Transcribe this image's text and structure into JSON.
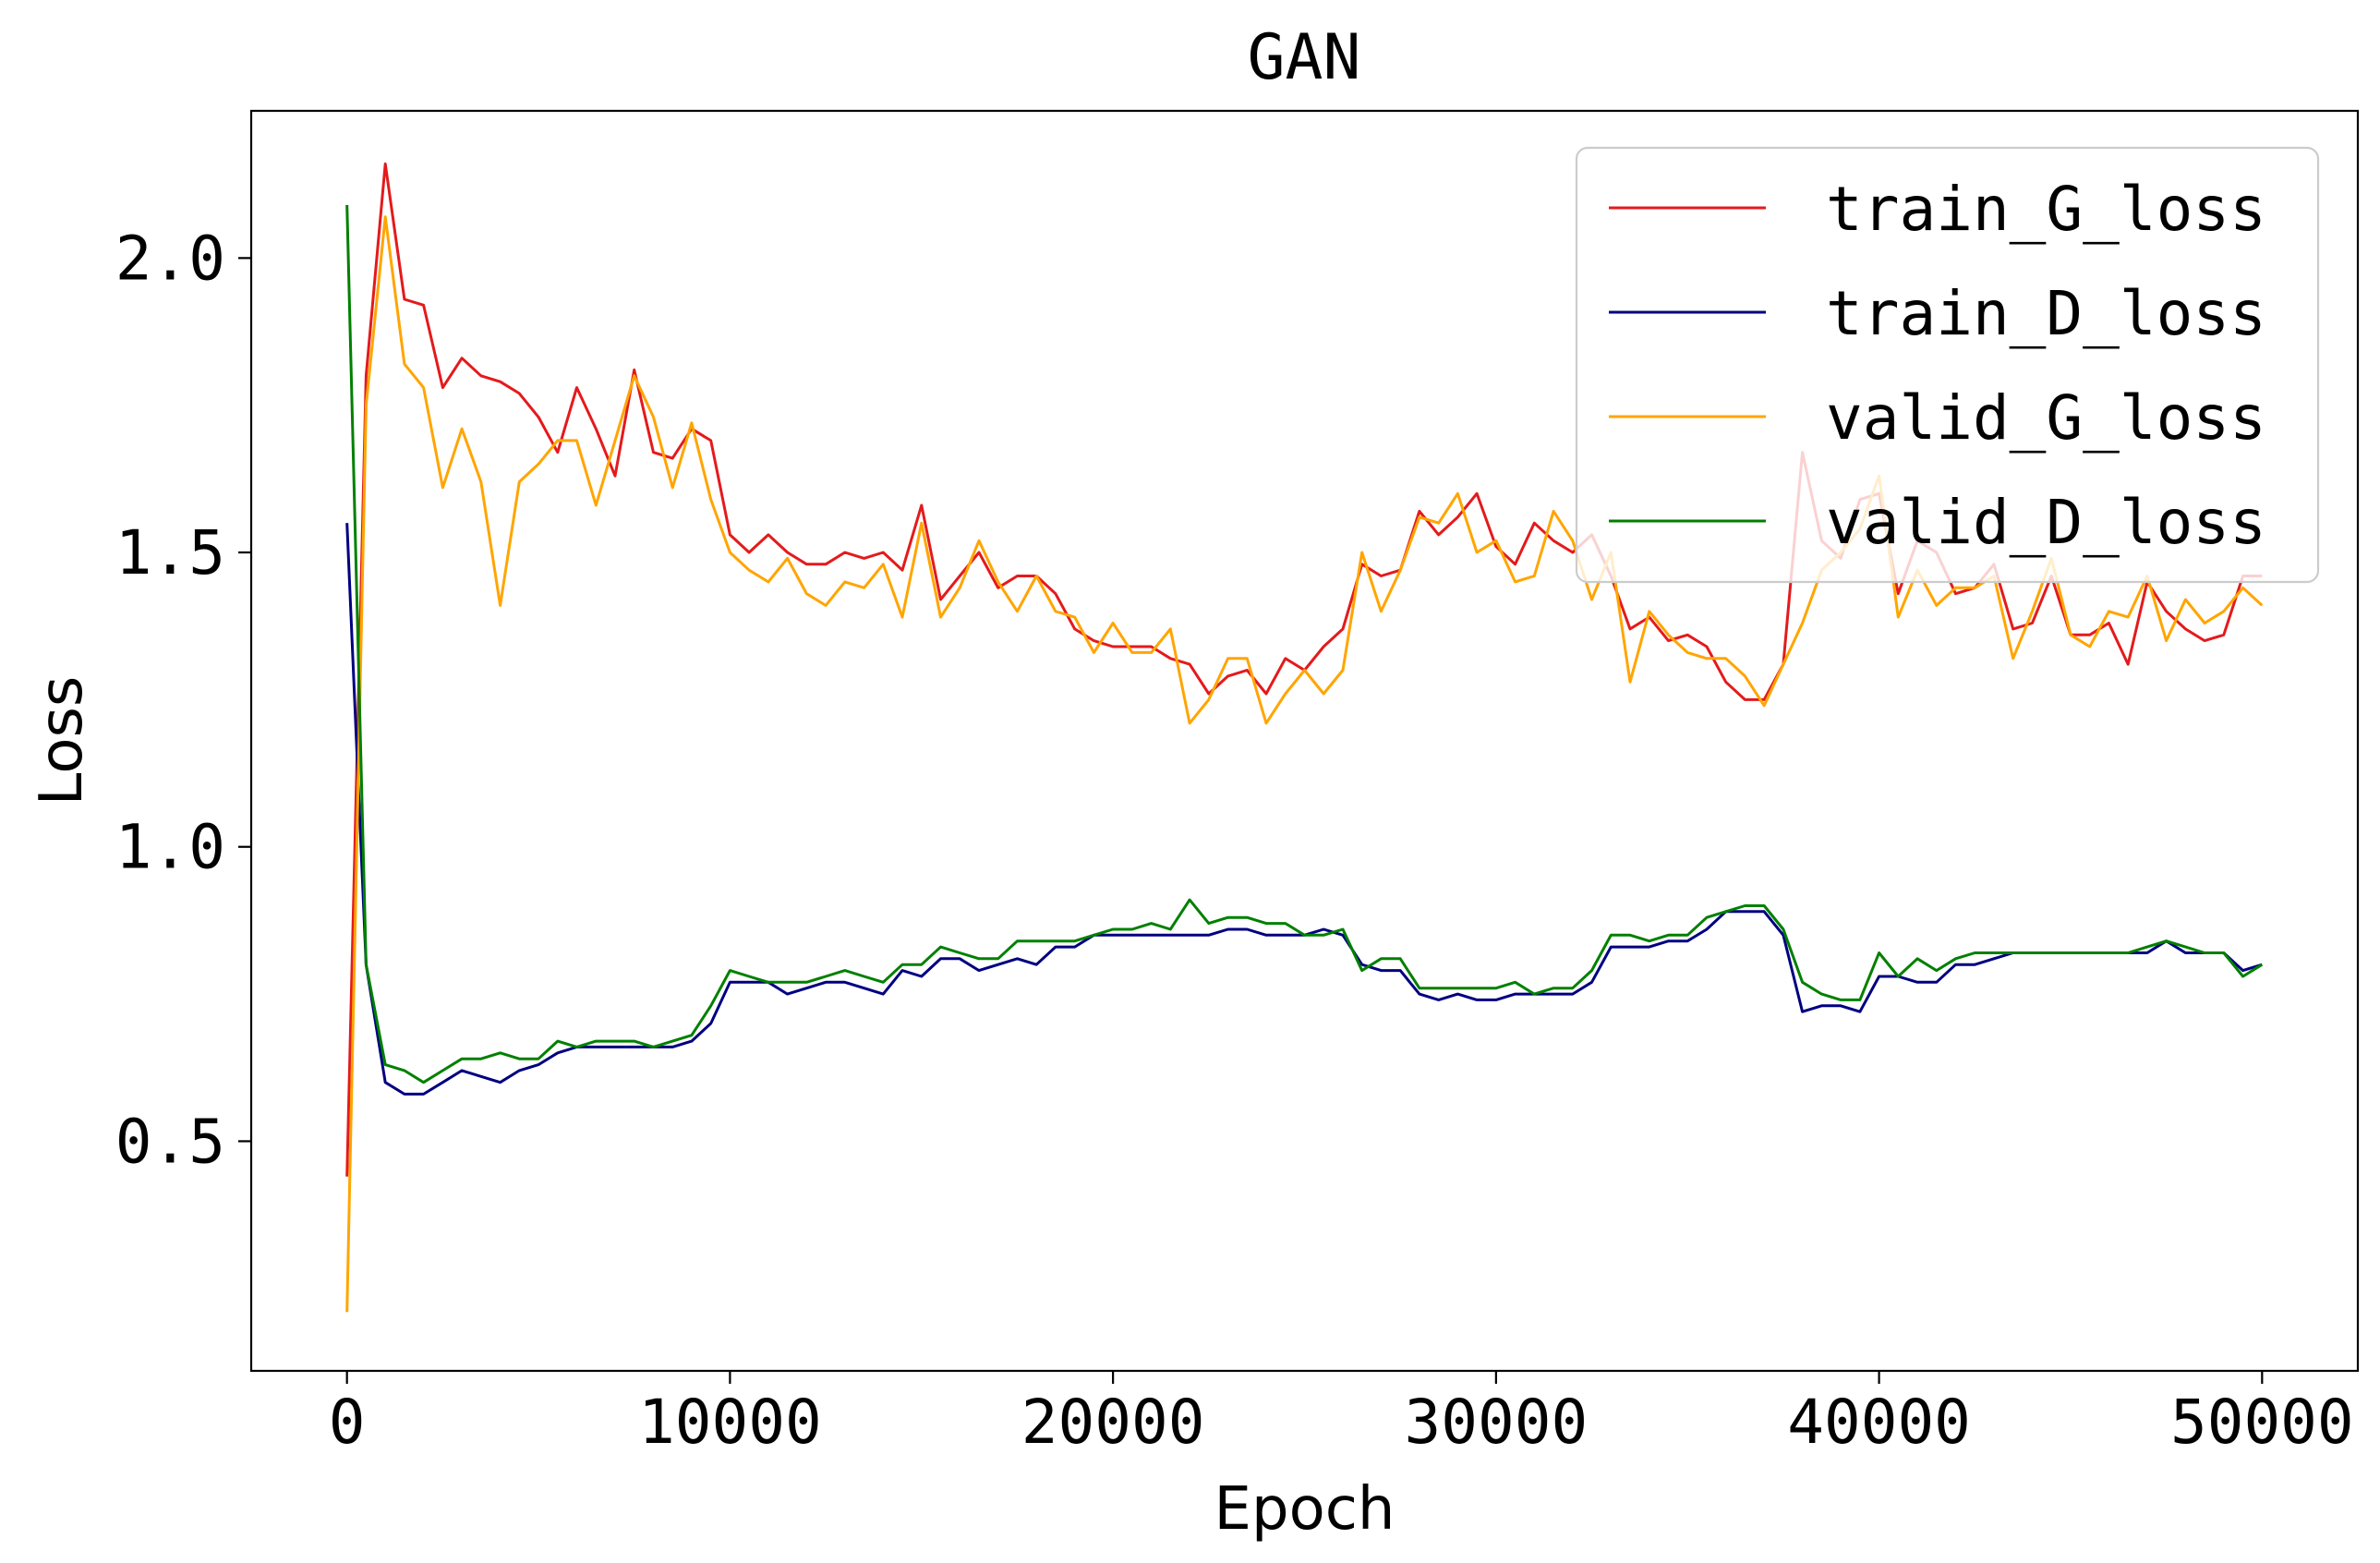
{
  "chart_data": {
    "type": "line",
    "title": "GAN",
    "xlabel": "Epoch",
    "ylabel": "Loss",
    "xlim": [
      -2500,
      52500
    ],
    "ylim": [
      0.11,
      2.25
    ],
    "xticks": [
      0,
      10000,
      20000,
      30000,
      40000,
      50000
    ],
    "xtick_labels": [
      "0",
      "10000",
      "20000",
      "30000",
      "40000",
      "50000"
    ],
    "yticks": [
      0.5,
      1.0,
      1.5,
      2.0
    ],
    "ytick_labels": [
      "0.5",
      "1.0",
      "1.5",
      "2.0"
    ],
    "grid": false,
    "legend_position": "top-right",
    "x": [
      0,
      500,
      1000,
      1500,
      2000,
      2500,
      3000,
      3500,
      4000,
      4500,
      5000,
      5500,
      6000,
      6500,
      7000,
      7500,
      8000,
      8500,
      9000,
      9500,
      10000,
      10500,
      11000,
      11500,
      12000,
      12500,
      13000,
      13500,
      14000,
      14500,
      15000,
      15500,
      16000,
      16500,
      17000,
      17500,
      18000,
      18500,
      19000,
      19500,
      20000,
      20500,
      21000,
      21500,
      22000,
      22500,
      23000,
      23500,
      24000,
      24500,
      25000,
      25500,
      26000,
      26500,
      27000,
      27500,
      28000,
      28500,
      29000,
      29500,
      30000,
      30500,
      31000,
      31500,
      32000,
      32500,
      33000,
      33500,
      34000,
      34500,
      35000,
      35500,
      36000,
      36500,
      37000,
      37500,
      38000,
      38500,
      39000,
      39500,
      40000,
      40500,
      41000,
      41500,
      42000,
      42500,
      43000,
      43500,
      44000,
      44500,
      45000,
      45500,
      46000,
      46500,
      47000,
      47500,
      48000,
      48500,
      49000,
      49500,
      50000
    ],
    "series": [
      {
        "name": "train_G_loss",
        "color": "#e41a1c",
        "values": [
          0.44,
          1.8,
          2.16,
          1.93,
          1.92,
          1.78,
          1.83,
          1.8,
          1.79,
          1.77,
          1.73,
          1.67,
          1.78,
          1.71,
          1.63,
          1.81,
          1.67,
          1.66,
          1.71,
          1.69,
          1.53,
          1.5,
          1.53,
          1.5,
          1.48,
          1.48,
          1.5,
          1.49,
          1.5,
          1.47,
          1.58,
          1.42,
          1.46,
          1.5,
          1.44,
          1.46,
          1.46,
          1.43,
          1.37,
          1.35,
          1.34,
          1.34,
          1.34,
          1.32,
          1.31,
          1.26,
          1.29,
          1.3,
          1.26,
          1.32,
          1.3,
          1.34,
          1.37,
          1.48,
          1.46,
          1.47,
          1.57,
          1.53,
          1.56,
          1.6,
          1.51,
          1.48,
          1.55,
          1.52,
          1.5,
          1.53,
          1.46,
          1.37,
          1.39,
          1.35,
          1.36,
          1.34,
          1.28,
          1.25,
          1.25,
          1.31,
          1.67,
          1.52,
          1.49,
          1.59,
          1.6,
          1.43,
          1.52,
          1.5,
          1.43,
          1.44,
          1.48,
          1.37,
          1.38,
          1.46,
          1.36,
          1.36,
          1.38,
          1.31,
          1.45,
          1.4,
          1.37,
          1.35,
          1.36,
          1.46,
          1.46
        ]
      },
      {
        "name": "train_D_loss",
        "color": "#000080",
        "values": [
          1.55,
          0.8,
          0.6,
          0.58,
          0.58,
          0.6,
          0.62,
          0.61,
          0.6,
          0.62,
          0.63,
          0.65,
          0.66,
          0.66,
          0.66,
          0.66,
          0.66,
          0.66,
          0.67,
          0.7,
          0.77,
          0.77,
          0.77,
          0.75,
          0.76,
          0.77,
          0.77,
          0.76,
          0.75,
          0.79,
          0.78,
          0.81,
          0.81,
          0.79,
          0.8,
          0.81,
          0.8,
          0.83,
          0.83,
          0.85,
          0.85,
          0.85,
          0.85,
          0.85,
          0.85,
          0.85,
          0.86,
          0.86,
          0.85,
          0.85,
          0.85,
          0.86,
          0.85,
          0.8,
          0.79,
          0.79,
          0.75,
          0.74,
          0.75,
          0.74,
          0.74,
          0.75,
          0.75,
          0.75,
          0.75,
          0.77,
          0.83,
          0.83,
          0.83,
          0.84,
          0.84,
          0.86,
          0.89,
          0.89,
          0.89,
          0.85,
          0.72,
          0.73,
          0.73,
          0.72,
          0.78,
          0.78,
          0.77,
          0.77,
          0.8,
          0.8,
          0.81,
          0.82,
          0.82,
          0.82,
          0.82,
          0.82,
          0.82,
          0.82,
          0.82,
          0.84,
          0.82,
          0.82,
          0.82,
          0.79,
          0.8
        ]
      },
      {
        "name": "valid_G_loss",
        "color": "#ffa500",
        "values": [
          0.21,
          1.75,
          2.07,
          1.82,
          1.78,
          1.61,
          1.71,
          1.62,
          1.41,
          1.62,
          1.65,
          1.69,
          1.69,
          1.58,
          1.69,
          1.8,
          1.73,
          1.61,
          1.72,
          1.59,
          1.5,
          1.47,
          1.45,
          1.49,
          1.43,
          1.41,
          1.45,
          1.44,
          1.48,
          1.39,
          1.55,
          1.39,
          1.44,
          1.52,
          1.45,
          1.4,
          1.46,
          1.4,
          1.39,
          1.33,
          1.38,
          1.33,
          1.33,
          1.37,
          1.21,
          1.25,
          1.32,
          1.32,
          1.21,
          1.26,
          1.3,
          1.26,
          1.3,
          1.5,
          1.4,
          1.47,
          1.56,
          1.55,
          1.6,
          1.5,
          1.52,
          1.45,
          1.46,
          1.57,
          1.52,
          1.42,
          1.5,
          1.28,
          1.4,
          1.36,
          1.33,
          1.32,
          1.32,
          1.29,
          1.24,
          1.31,
          1.38,
          1.47,
          1.5,
          1.54,
          1.63,
          1.39,
          1.47,
          1.41,
          1.44,
          1.44,
          1.46,
          1.32,
          1.4,
          1.49,
          1.36,
          1.34,
          1.4,
          1.39,
          1.46,
          1.35,
          1.42,
          1.38,
          1.4,
          1.44,
          1.41
        ]
      },
      {
        "name": "valid_D_loss",
        "color": "#008000",
        "values": [
          2.09,
          0.8,
          0.63,
          0.62,
          0.6,
          0.62,
          0.64,
          0.64,
          0.65,
          0.64,
          0.64,
          0.67,
          0.66,
          0.67,
          0.67,
          0.67,
          0.66,
          0.67,
          0.68,
          0.73,
          0.79,
          0.78,
          0.77,
          0.77,
          0.77,
          0.78,
          0.79,
          0.78,
          0.77,
          0.8,
          0.8,
          0.83,
          0.82,
          0.81,
          0.81,
          0.84,
          0.84,
          0.84,
          0.84,
          0.85,
          0.86,
          0.86,
          0.87,
          0.86,
          0.91,
          0.87,
          0.88,
          0.88,
          0.87,
          0.87,
          0.85,
          0.85,
          0.86,
          0.79,
          0.81,
          0.81,
          0.76,
          0.76,
          0.76,
          0.76,
          0.76,
          0.77,
          0.75,
          0.76,
          0.76,
          0.79,
          0.85,
          0.85,
          0.84,
          0.85,
          0.85,
          0.88,
          0.89,
          0.9,
          0.9,
          0.86,
          0.77,
          0.75,
          0.74,
          0.74,
          0.82,
          0.78,
          0.81,
          0.79,
          0.81,
          0.82,
          0.82,
          0.82,
          0.82,
          0.82,
          0.82,
          0.82,
          0.82,
          0.82,
          0.83,
          0.84,
          0.83,
          0.82,
          0.82,
          0.78,
          0.8
        ]
      }
    ]
  }
}
